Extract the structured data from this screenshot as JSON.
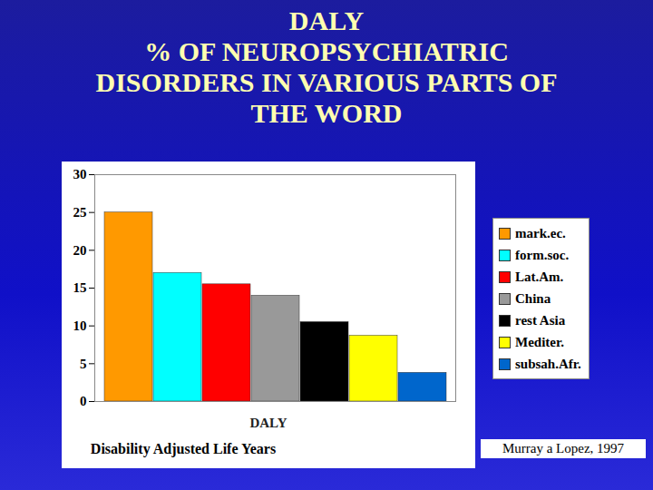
{
  "chart_data": {
    "type": "bar",
    "title": "DALY\n% OF NEUROPSYCHIATRIC\nDISORDERS IN VARIOUS PARTS OF\nTHE WORD",
    "xlabel": "DALY",
    "annotations": [
      "Disability Adjusted Life Years",
      "Murray a Lopez, 1997"
    ],
    "categories": [
      "mark.ec.",
      "form.soc.",
      "Lat.Am.",
      "China",
      "rest Asia",
      "Mediter.",
      "subsah.Afr."
    ],
    "values": [
      25,
      17,
      15.5,
      14,
      10.5,
      8.7,
      3.8
    ],
    "colors": [
      "#ff9900",
      "#00ffff",
      "#ff0000",
      "#999999",
      "#000000",
      "#ffff00",
      "#0066cc"
    ],
    "ylim": [
      0,
      30
    ],
    "yticks": [
      0,
      5,
      10,
      15,
      20,
      25,
      30
    ],
    "grid": false,
    "legend": "right",
    "tick_labels": "y"
  }
}
